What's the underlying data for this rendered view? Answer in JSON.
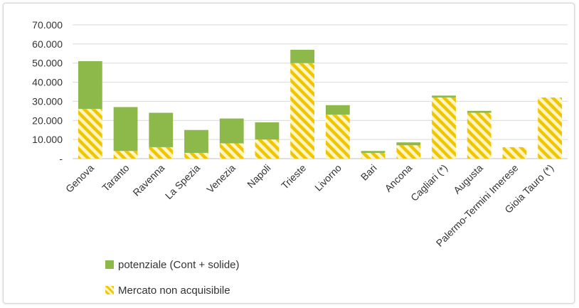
{
  "chart_data": {
    "type": "bar",
    "stacked": true,
    "categories": [
      "Genova",
      "Taranto",
      "Ravenna",
      "La Spezia",
      "Venezia",
      "Napoli",
      "Trieste",
      "Livorno",
      "Bari",
      "Ancona",
      "Cagliari (*)",
      "Augusta",
      "Palermo-Termini Imerese",
      "Gioia Tauro (*)"
    ],
    "series": [
      {
        "name": "Mercato non acquisibile",
        "color": "#f2c500",
        "pattern": "diagonal-hatch",
        "values": [
          26000,
          4000,
          6000,
          3000,
          8000,
          10000,
          50000,
          23000,
          3000,
          7000,
          32000,
          24000,
          6000,
          32000
        ]
      },
      {
        "name": "potenziale (Cont + solide)",
        "color": "#8db84a",
        "values": [
          25000,
          23000,
          18000,
          12000,
          13000,
          9000,
          7000,
          5000,
          1000,
          1500,
          1000,
          1000,
          0,
          0
        ]
      }
    ],
    "y_ticks": [
      "-",
      "10.000",
      "20.000",
      "30.000",
      "40.000",
      "50.000",
      "60.000",
      "70.000"
    ],
    "ylim": [
      0,
      70000
    ],
    "grid": true,
    "legend_position": "bottom-left"
  }
}
